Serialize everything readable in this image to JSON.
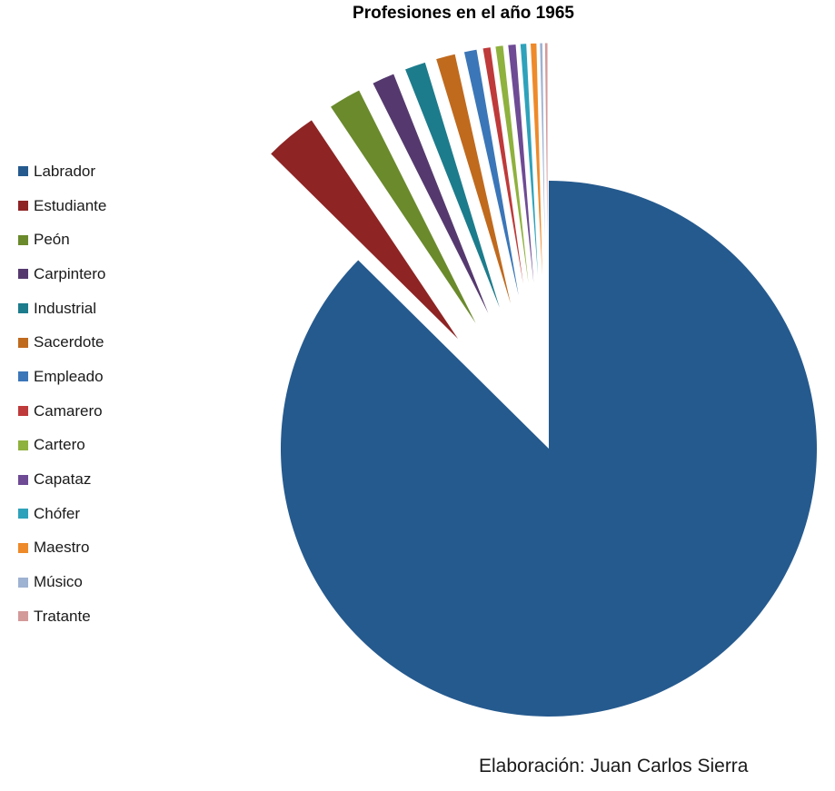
{
  "chart_data": {
    "type": "pie",
    "title": "Profesiones en el año 1965",
    "legend_position": "left",
    "exploded": "all slices except Labrador",
    "slices": [
      {
        "label": "Labrador",
        "value": 87.5,
        "color": "#255A8E"
      },
      {
        "label": "Estudiante",
        "value": 3.2,
        "color": "#8E2424"
      },
      {
        "label": "Peón",
        "value": 2.0,
        "color": "#6A8A2C"
      },
      {
        "label": "Carpintero",
        "value": 1.4,
        "color": "#55396E"
      },
      {
        "label": "Industrial",
        "value": 1.3,
        "color": "#1C7C8C"
      },
      {
        "label": "Sacerdote",
        "value": 1.2,
        "color": "#C06A1E"
      },
      {
        "label": "Empleado",
        "value": 0.8,
        "color": "#3B76B8"
      },
      {
        "label": "Camarero",
        "value": 0.5,
        "color": "#BF3A3A"
      },
      {
        "label": "Cartero",
        "value": 0.5,
        "color": "#8FB13E"
      },
      {
        "label": "Capataz",
        "value": 0.5,
        "color": "#6E4B94"
      },
      {
        "label": "Chófer",
        "value": 0.4,
        "color": "#2EA2BA"
      },
      {
        "label": "Maestro",
        "value": 0.4,
        "color": "#EE8A2A"
      },
      {
        "label": "Músico",
        "value": 0.2,
        "color": "#9EB2D1"
      },
      {
        "label": "Tratante",
        "value": 0.2,
        "color": "#D39A9A"
      }
    ]
  },
  "credit": "Elaboración: Juan Carlos Sierra"
}
